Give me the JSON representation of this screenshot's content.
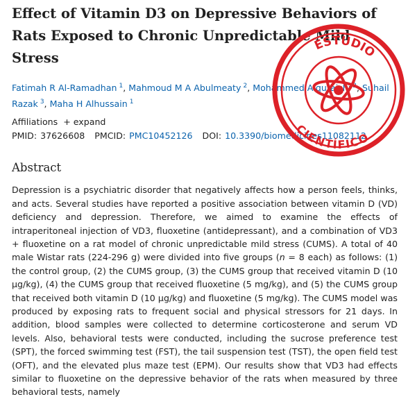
{
  "title": "Effect of Vitamin D3 on Depressive Behaviors of Rats Exposed to Chronic Unpredictable Mild Stress",
  "authors": [
    {
      "name": "Fatimah R Al-Ramadhan",
      "sup": "1"
    },
    {
      "name": "Mahmoud M A Abulmeaty",
      "sup": "2"
    },
    {
      "name": "Mohammed Alquraishi",
      "sup": "2"
    },
    {
      "name": "Suhail Razak",
      "sup": "3"
    },
    {
      "name": "Maha H Alhussain",
      "sup": "1"
    }
  ],
  "affiliations": {
    "label": "Affiliations",
    "toggle": "+ expand"
  },
  "ids": {
    "pmid_label": "PMID:",
    "pmid": "37626608",
    "pmcid_label": "PMCID:",
    "pmcid": "PMC10452126",
    "doi_label": "DOI:",
    "doi": "10.3390/biomedicines11082112"
  },
  "abstract": {
    "heading": "Abstract",
    "parts": [
      "Depression is a psychiatric disorder that negatively affects how a person feels, thinks, and acts. Several studies have reported a positive association between vitamin D (VD) deficiency and depression. Therefore, we aimed to examine the effects of intraperitoneal injection of VD3, fluoxetine (antidepressant), and a combination of VD3 + fluoxetine on a rat model of chronic unpredictable mild stress (CUMS). A total of 40 male Wistar rats (224-296 g) were divided into five groups (",
      "n",
      " = 8 each) as follows: (1) the control group, (2) the CUMS group, (3) the CUMS group that received vitamin D (10 μg/kg), (4) the CUMS group that received fluoxetine (5 mg/kg), and (5) the CUMS group that received both vitamin D (10 μg/kg) and fluoxetine (5 mg/kg). The CUMS model was produced by exposing rats to frequent social and physical stressors for 21 days. In addition, blood samples were collected to determine corticosterone and serum VD levels. Also, behavioral tests were conducted, including the sucrose preference test (SPT), the forced swimming test (FST), the tail suspension test (TST), the open field test (OFT), and the elevated plus maze test (EPM). Our results show that VD3 had effects similar to fluoxetine on the depressive behavior of the rats when measured by three behavioral tests, namely"
    ]
  },
  "stamp": {
    "top": "ESTUDIO",
    "bottom": "CIENTÍFICO"
  }
}
